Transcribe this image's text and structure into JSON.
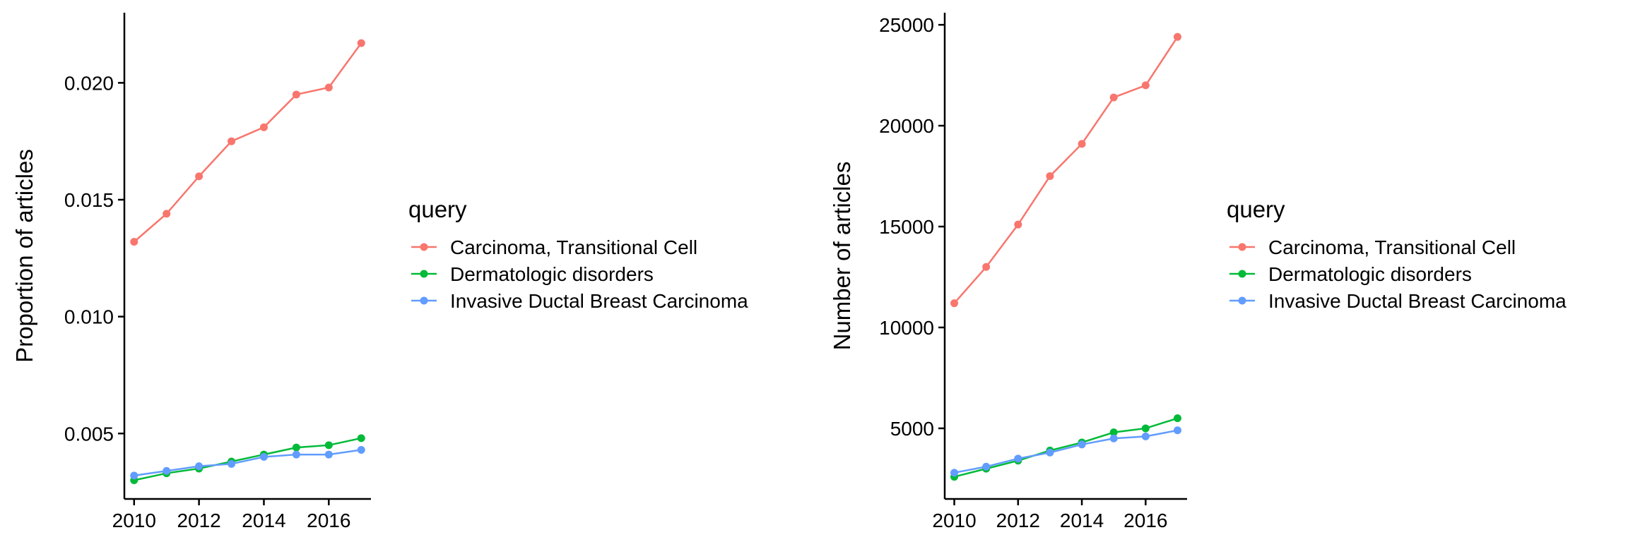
{
  "chart_data": [
    {
      "type": "line",
      "title": "",
      "xlabel": "",
      "ylabel": "Proportion of articles",
      "x": [
        2010,
        2011,
        2012,
        2013,
        2014,
        2015,
        2016,
        2017
      ],
      "xticks": [
        2010,
        2012,
        2014,
        2016
      ],
      "xlim": [
        2009.7,
        2017.3
      ],
      "yticks": [
        0.005,
        0.01,
        0.015,
        0.02
      ],
      "ytick_labels": [
        "0.005",
        "0.010",
        "0.015",
        "0.020"
      ],
      "ylim": [
        0.0022,
        0.023
      ],
      "grid": false,
      "legend": {
        "title": "query",
        "position": "right"
      },
      "series": [
        {
          "name": "Carcinoma, Transitional Cell",
          "color": "#F8766D",
          "values": [
            0.0132,
            0.0144,
            0.016,
            0.0175,
            0.0181,
            0.0195,
            0.0198,
            0.0217
          ]
        },
        {
          "name": "Dermatologic disorders",
          "color": "#00BA38",
          "values": [
            0.003,
            0.0033,
            0.0035,
            0.0038,
            0.0041,
            0.0044,
            0.0045,
            0.0048
          ]
        },
        {
          "name": "Invasive Ductal Breast Carcinoma",
          "color": "#619CFF",
          "values": [
            0.0032,
            0.0034,
            0.0036,
            0.0037,
            0.004,
            0.0041,
            0.0041,
            0.0043
          ]
        }
      ]
    },
    {
      "type": "line",
      "title": "",
      "xlabel": "",
      "ylabel": "Number of articles",
      "x": [
        2010,
        2011,
        2012,
        2013,
        2014,
        2015,
        2016,
        2017
      ],
      "xticks": [
        2010,
        2012,
        2014,
        2016
      ],
      "xlim": [
        2009.7,
        2017.3
      ],
      "yticks": [
        5000,
        10000,
        15000,
        20000,
        25000
      ],
      "ytick_labels": [
        "5000",
        "10000",
        "15000",
        "20000",
        "25000"
      ],
      "ylim": [
        1500,
        25600
      ],
      "grid": false,
      "legend": {
        "title": "query",
        "position": "right"
      },
      "series": [
        {
          "name": "Carcinoma, Transitional Cell",
          "color": "#F8766D",
          "values": [
            11200,
            13000,
            15100,
            17500,
            19100,
            21400,
            22000,
            24400
          ]
        },
        {
          "name": "Dermatologic disorders",
          "color": "#00BA38",
          "values": [
            2600,
            3000,
            3400,
            3900,
            4300,
            4800,
            5000,
            5500
          ]
        },
        {
          "name": "Invasive Ductal Breast Carcinoma",
          "color": "#619CFF",
          "values": [
            2800,
            3100,
            3500,
            3800,
            4200,
            4500,
            4600,
            4900
          ]
        }
      ]
    }
  ]
}
